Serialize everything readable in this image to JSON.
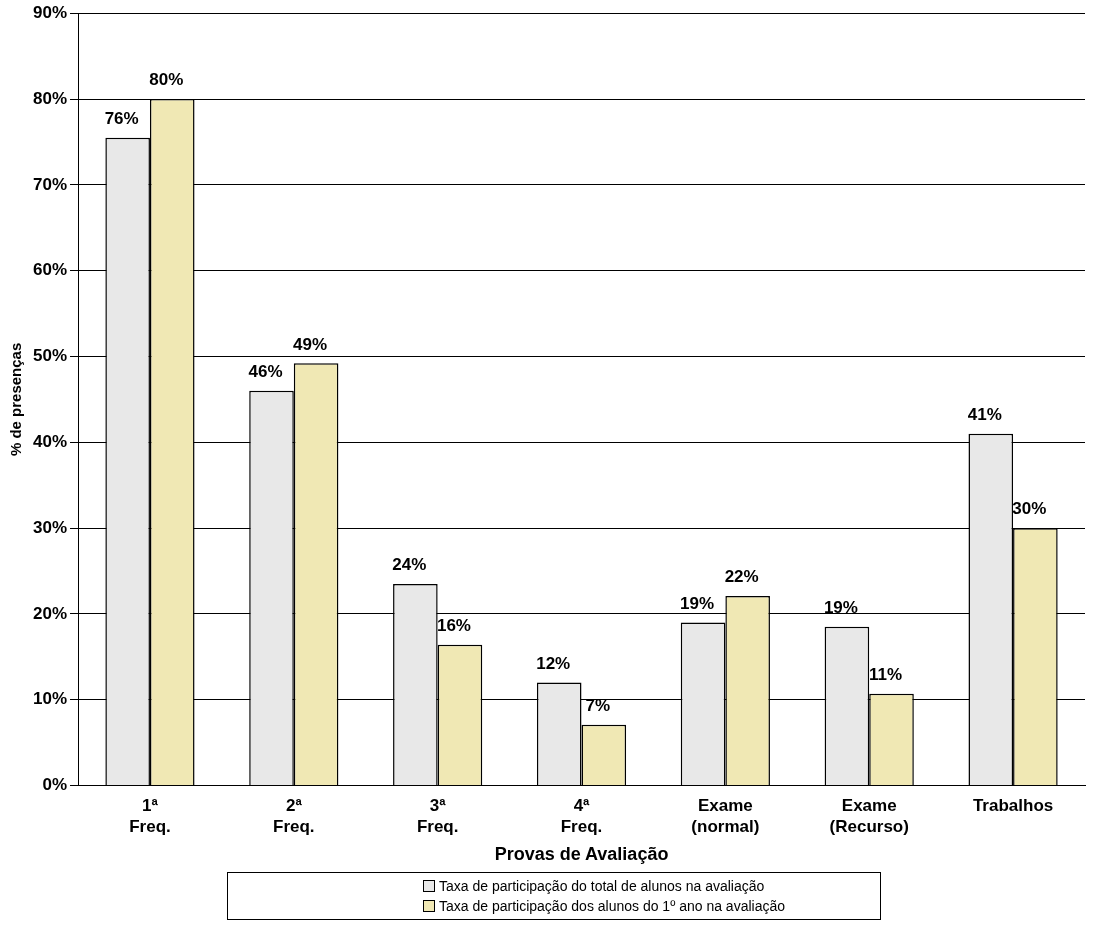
{
  "chart_data": {
    "type": "bar",
    "xlabel": "Provas de Avaliação",
    "ylabel": "% de presenças",
    "categories": [
      "1ª Freq.",
      "2ª Freq.",
      "3ª Freq.",
      "4ª Freq.",
      "Exame (normal)",
      "Exame (Recurso)",
      "Trabalhos"
    ],
    "series": [
      {
        "name": "Taxa de participação do total de alunos na avaliação",
        "color": "#e8e8e8",
        "values": [
          75.5,
          46,
          23.5,
          12,
          19,
          18.5,
          41
        ],
        "value_labels": [
          "76%",
          "46%",
          "24%",
          "12%",
          "19%",
          "19%",
          "41%"
        ]
      },
      {
        "name": "Taxa de participação dos alunos do 1º ano na avaliação",
        "color": "#f0e8b4",
        "values": [
          80,
          49.2,
          16.4,
          7.1,
          22.1,
          10.7,
          30
        ],
        "value_labels": [
          "80%",
          "49%",
          "16%",
          "7%",
          "22%",
          "11%",
          "30%"
        ]
      }
    ],
    "ylim": [
      0,
      90
    ],
    "yticks": [
      {
        "value": 0,
        "label": "0%"
      },
      {
        "value": 10,
        "label": "10%"
      },
      {
        "value": 20,
        "label": "20%"
      },
      {
        "value": 30,
        "label": "30%"
      },
      {
        "value": 40,
        "label": "40%"
      },
      {
        "value": 50,
        "label": "50%"
      },
      {
        "value": 60,
        "label": "60%"
      },
      {
        "value": 70,
        "label": "70%"
      },
      {
        "value": 80,
        "label": "80%"
      },
      {
        "value": 90,
        "label": "90%"
      }
    ],
    "grid": "y",
    "legend": "bottom"
  }
}
